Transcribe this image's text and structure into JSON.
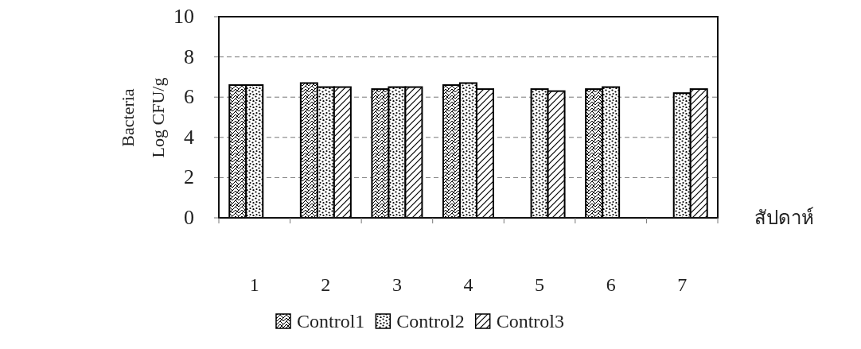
{
  "chart_data": {
    "type": "bar",
    "xlabel": "สัปดาห์",
    "ylabel": "Bacteria Log CFU/g",
    "categories": [
      "1",
      "2",
      "3",
      "4",
      "5",
      "6",
      "7"
    ],
    "series": [
      {
        "name": "Control1",
        "color": "#000000",
        "values": [
          6.6,
          6.7,
          6.4,
          6.6,
          null,
          6.4,
          null
        ]
      },
      {
        "name": "Control2",
        "color": "#000000",
        "values": [
          6.6,
          6.5,
          6.5,
          6.7,
          6.4,
          6.5,
          6.2
        ]
      },
      {
        "name": "Control3",
        "color": "#000000",
        "values": [
          null,
          6.5,
          6.5,
          6.4,
          6.3,
          null,
          6.4
        ]
      }
    ],
    "ylim": [
      0,
      10
    ],
    "yticks": [
      0,
      2,
      4,
      6,
      8,
      10
    ],
    "grid": "y",
    "legend": "bottom"
  }
}
